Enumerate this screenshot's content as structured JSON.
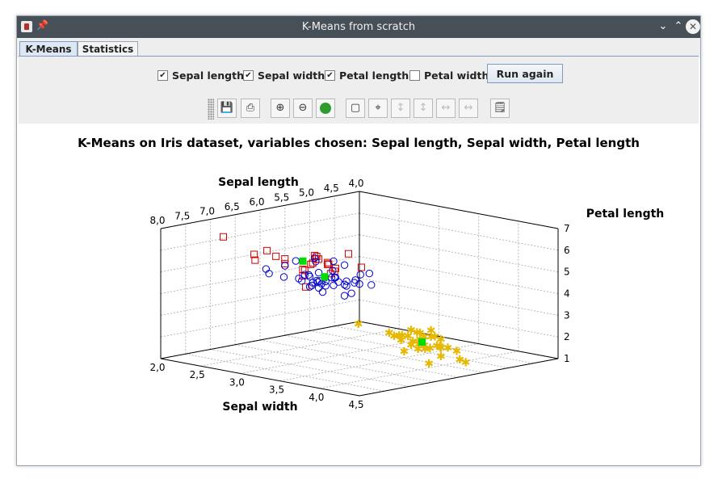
{
  "window": {
    "title": "K-Means from scratch"
  },
  "tabs": [
    {
      "label": "K-Means"
    },
    {
      "label": "Statistics"
    }
  ],
  "controls": {
    "checkboxes": [
      {
        "label": "Sepal length",
        "checked": true
      },
      {
        "label": "Sepal width",
        "checked": true
      },
      {
        "label": "Petal length",
        "checked": true
      },
      {
        "label": "Petal width",
        "checked": false
      }
    ],
    "run_button": "Run again"
  },
  "toolbar_icons": [
    "save-icon",
    "print-icon",
    "zoom-in-icon",
    "zoom-out-icon",
    "reset-view-icon",
    "fit-box-icon",
    "rotate-icon",
    "pan-vertical-icon",
    "pan-vertical-alt-icon",
    "pan-horizontal-icon",
    "pan-horizontal-alt-icon",
    "settings-icon"
  ],
  "colors": {
    "cluster1": "#cc0000",
    "cluster2": "#0000cc",
    "cluster3": "#e6b800",
    "centroid": "#00dd00",
    "titlebar": "#475057"
  },
  "chart_data": {
    "type": "scatter",
    "title": "K-Means on Iris dataset, variables chosen: Sepal length, Sepal width, Petal length",
    "axes": {
      "x": {
        "label": "Sepal length",
        "range": [
          4.0,
          8.0
        ],
        "ticks": [
          "4,0",
          "4,5",
          "5,0",
          "5,5",
          "6,0",
          "6,5",
          "7,0",
          "7,5",
          "8,0"
        ]
      },
      "y": {
        "label": "Sepal width",
        "range": [
          2.0,
          4.5
        ],
        "ticks": [
          "2,0",
          "2,5",
          "3,0",
          "3,5",
          "4,0",
          "4,5"
        ]
      },
      "z": {
        "label": "Petal length",
        "range": [
          1,
          7
        ],
        "ticks": [
          "1",
          "2",
          "3",
          "4",
          "5",
          "6",
          "7"
        ]
      }
    },
    "grid": true,
    "series": [
      {
        "marker": "square",
        "color": "#cc0000",
        "points": [
          [
            7.7,
            2.6,
            6.9
          ],
          [
            7.4,
            2.8,
            6.1
          ],
          [
            7.2,
            3.6,
            6.1
          ],
          [
            7.3,
            2.9,
            6.3
          ],
          [
            7.1,
            3.0,
            5.9
          ],
          [
            7.0,
            3.2,
            4.7
          ],
          [
            6.9,
            3.1,
            5.4
          ],
          [
            6.9,
            3.1,
            5.1
          ],
          [
            6.7,
            3.3,
            5.7
          ],
          [
            6.5,
            3.0,
            5.8
          ],
          [
            6.4,
            3.2,
            5.3
          ],
          [
            6.3,
            3.3,
            6.0
          ],
          [
            6.3,
            2.9,
            5.6
          ],
          [
            6.8,
            3.2,
            5.9
          ],
          [
            6.7,
            3.0,
            5.2
          ],
          [
            6.2,
            3.4,
            5.4
          ],
          [
            6.4,
            3.1,
            5.5
          ],
          [
            6.5,
            3.2,
            5.1
          ],
          [
            6.0,
            2.2,
            5.0
          ],
          [
            6.3,
            2.5,
            5.0
          ],
          [
            6.7,
            3.1,
            5.6
          ],
          [
            6.9,
            3.2,
            5.7
          ],
          [
            7.7,
            3.8,
            6.7
          ],
          [
            7.7,
            3.0,
            6.1
          ],
          [
            6.1,
            3.0,
            4.9
          ]
        ]
      },
      {
        "marker": "circle",
        "color": "#0000cc",
        "points": [
          [
            5.7,
            2.8,
            4.1
          ],
          [
            5.5,
            2.3,
            4.0
          ],
          [
            5.6,
            2.9,
            3.6
          ],
          [
            5.8,
            2.7,
            4.1
          ],
          [
            5.9,
            3.0,
            4.2
          ],
          [
            6.0,
            2.9,
            4.5
          ],
          [
            5.7,
            2.6,
            3.5
          ],
          [
            5.5,
            2.4,
            3.8
          ],
          [
            5.8,
            2.7,
            3.9
          ],
          [
            6.0,
            2.7,
            5.1
          ],
          [
            5.4,
            3.0,
            4.5
          ],
          [
            6.0,
            3.4,
            4.5
          ],
          [
            6.7,
            3.1,
            4.7
          ],
          [
            6.3,
            2.3,
            4.4
          ],
          [
            5.6,
            3.0,
            4.1
          ],
          [
            5.5,
            2.5,
            4.0
          ],
          [
            5.5,
            2.6,
            4.4
          ],
          [
            6.1,
            3.0,
            4.6
          ],
          [
            5.8,
            2.6,
            4.0
          ],
          [
            5.0,
            2.3,
            3.3
          ],
          [
            5.6,
            2.7,
            4.2
          ],
          [
            5.7,
            3.0,
            4.2
          ],
          [
            5.7,
            2.9,
            4.2
          ],
          [
            6.2,
            2.9,
            4.3
          ],
          [
            5.1,
            2.5,
            3.0
          ],
          [
            4.9,
            2.4,
            3.3
          ],
          [
            6.6,
            2.9,
            4.6
          ],
          [
            5.2,
            2.7,
            3.9
          ],
          [
            5.0,
            2.0,
            3.5
          ],
          [
            5.9,
            3.2,
            4.8
          ],
          [
            6.1,
            2.8,
            4.0
          ],
          [
            6.6,
            3.0,
            4.4
          ],
          [
            6.8,
            2.8,
            4.8
          ],
          [
            6.7,
            3.0,
            5.0
          ],
          [
            6.2,
            2.2,
            4.5
          ],
          [
            5.6,
            2.5,
            3.9
          ],
          [
            6.3,
            2.5,
            4.9
          ],
          [
            6.1,
            2.8,
            4.7
          ],
          [
            6.4,
            2.9,
            4.3
          ],
          [
            5.7,
            2.5,
            5.0
          ],
          [
            5.8,
            2.8,
            5.1
          ],
          [
            6.4,
            2.7,
            5.3
          ],
          [
            6.5,
            2.8,
            4.6
          ],
          [
            5.9,
            3.0,
            5.1
          ]
        ]
      },
      {
        "marker": "star",
        "color": "#e6b800",
        "points": [
          [
            5.1,
            3.5,
            1.4
          ],
          [
            4.9,
            3.0,
            1.4
          ],
          [
            4.7,
            3.2,
            1.3
          ],
          [
            4.6,
            3.1,
            1.5
          ],
          [
            5.0,
            3.6,
            1.4
          ],
          [
            5.4,
            3.9,
            1.7
          ],
          [
            4.6,
            3.4,
            1.4
          ],
          [
            5.0,
            3.4,
            1.5
          ],
          [
            4.4,
            2.9,
            1.4
          ],
          [
            4.9,
            3.1,
            1.5
          ],
          [
            5.4,
            3.7,
            1.5
          ],
          [
            4.8,
            3.4,
            1.6
          ],
          [
            4.8,
            3.0,
            1.4
          ],
          [
            4.3,
            3.0,
            1.1
          ],
          [
            5.8,
            4.0,
            1.2
          ],
          [
            5.7,
            4.4,
            1.5
          ],
          [
            5.4,
            3.9,
            1.3
          ],
          [
            5.1,
            3.5,
            1.4
          ],
          [
            5.7,
            3.8,
            1.7
          ],
          [
            5.1,
            3.8,
            1.5
          ],
          [
            5.4,
            3.4,
            1.7
          ],
          [
            5.1,
            3.7,
            1.5
          ],
          [
            4.6,
            3.6,
            1.0
          ],
          [
            5.1,
            3.3,
            1.7
          ],
          [
            4.8,
            3.4,
            1.9
          ],
          [
            5.0,
            3.0,
            1.6
          ],
          [
            5.2,
            3.5,
            1.5
          ],
          [
            5.2,
            3.4,
            1.4
          ],
          [
            4.7,
            3.2,
            1.6
          ],
          [
            5.5,
            4.2,
            1.4
          ],
          [
            4.5,
            2.3,
            1.3
          ],
          [
            5.3,
            3.7,
            1.5
          ],
          [
            5.0,
            3.3,
            1.4
          ],
          [
            5.5,
            3.5,
            1.3
          ],
          [
            4.4,
            3.2,
            1.3
          ]
        ]
      },
      {
        "marker": "filled-square",
        "color": "#00dd00",
        "points": [
          [
            6.85,
            3.07,
            5.74
          ],
          [
            5.9,
            2.75,
            4.39
          ],
          [
            5.01,
            3.42,
            1.46
          ]
        ]
      }
    ]
  }
}
